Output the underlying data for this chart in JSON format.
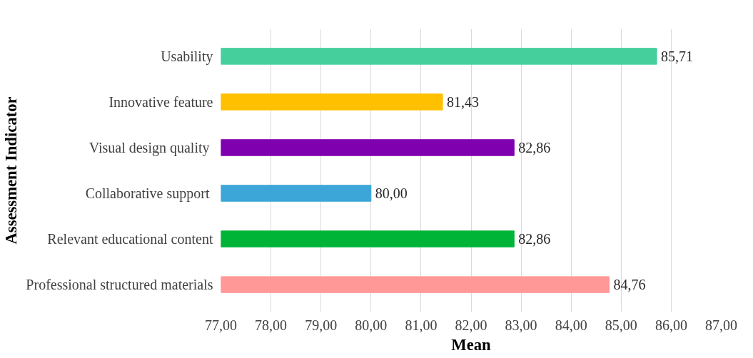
{
  "chart_data": {
    "type": "bar",
    "orientation": "horizontal",
    "xlabel": "Mean",
    "ylabel": "Assessment Indicator",
    "categories": [
      "Usability",
      "Innovative feature",
      "Visual design  quality",
      "Collaborative  support",
      "Relevant educational content",
      "Professional structured materials"
    ],
    "values": [
      85.71,
      81.43,
      82.86,
      80.0,
      82.86,
      84.76
    ],
    "value_labels": [
      "85,71",
      "81,43",
      "82,86",
      "80,00",
      "82,86",
      "84,76"
    ],
    "colors": [
      "#44cf9c",
      "#ffc000",
      "#7f00af",
      "#3ca6d8",
      "#00b438",
      "#ff9896"
    ],
    "xlim": [
      77,
      87
    ],
    "xticks": [
      {
        "value": 77,
        "label": "77,00"
      },
      {
        "value": 78,
        "label": "78,00"
      },
      {
        "value": 79,
        "label": "79,00"
      },
      {
        "value": 80,
        "label": "80,00"
      },
      {
        "value": 81,
        "label": "81,00"
      },
      {
        "value": 82,
        "label": "82,00"
      },
      {
        "value": 83,
        "label": "83,00"
      },
      {
        "value": 84,
        "label": "84,00"
      },
      {
        "value": 85,
        "label": "85,00"
      },
      {
        "value": 86,
        "label": "86,00"
      },
      {
        "value": 87,
        "label": "87,00"
      }
    ],
    "grid": "x"
  }
}
